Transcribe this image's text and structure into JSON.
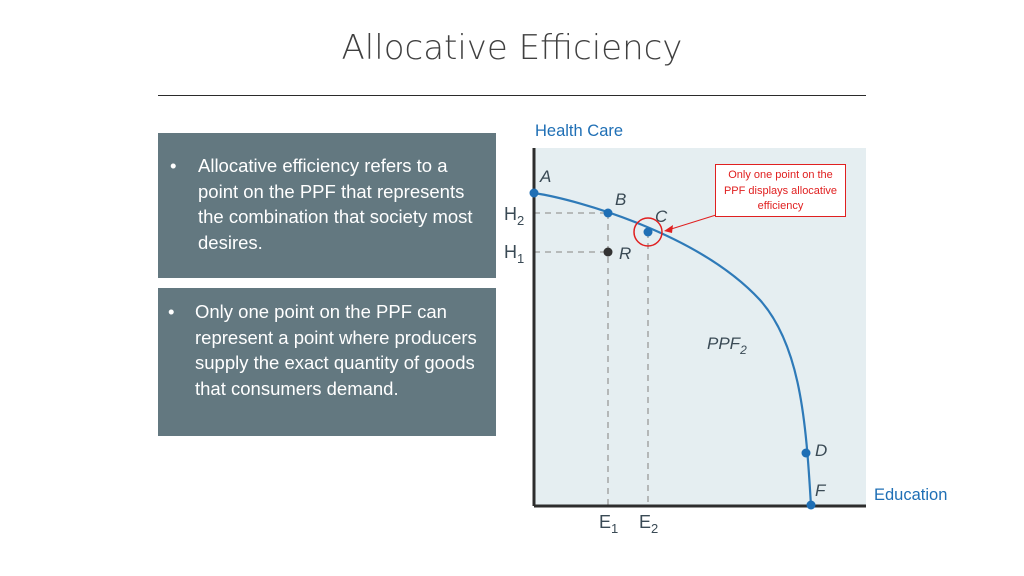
{
  "slide": {
    "title": "Allocative Efficiency",
    "bullet_symbol": "•",
    "bullet1": "Allocative efficiency refers to a point on the PPF that represents the combination that society most desires.",
    "bullet2": "Only one point on the PPF can represent a point where producers supply the exact quantity of goods that consumers demand."
  },
  "diagram": {
    "y_axis_label": "Health Care",
    "x_axis_label": "Education",
    "curve_label": "PPF",
    "curve_label_sub": "2",
    "callout": "Only one point on the PPF displays allocative efficiency",
    "points": {
      "A": "A",
      "B": "B",
      "C": "C",
      "D": "D",
      "F": "F",
      "R": "R"
    },
    "y_ticks": [
      {
        "main": "H",
        "sub": "2"
      },
      {
        "main": "H",
        "sub": "1"
      }
    ],
    "x_ticks": [
      {
        "main": "E",
        "sub": "1"
      },
      {
        "main": "E",
        "sub": "2"
      }
    ],
    "colors": {
      "curve": "#2e7ab8",
      "point": "#1f6fb5",
      "interior_point": "#333333",
      "highlight": "#e02020",
      "axis": "#2d2d2d"
    }
  }
}
